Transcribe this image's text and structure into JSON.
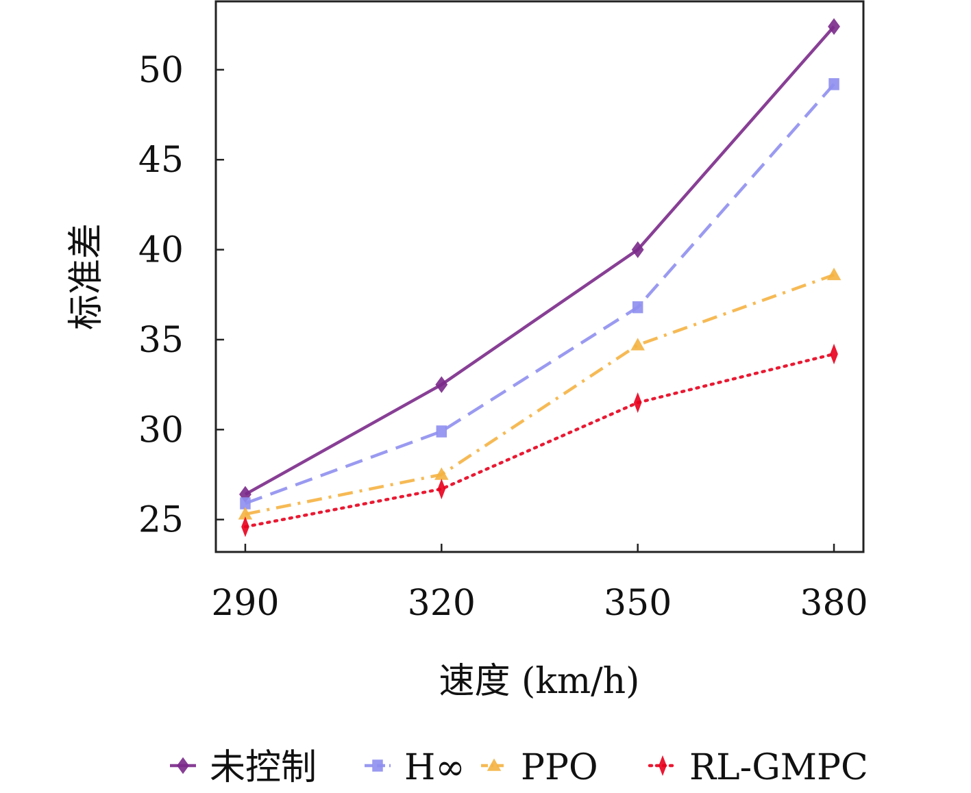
{
  "chart_data": {
    "type": "line",
    "title": "",
    "xlabel": "速度 (km/h)",
    "ylabel": "标准差",
    "x": [
      290,
      320,
      350,
      380
    ],
    "xlim": [
      285.5,
      384.5
    ],
    "ylim": [
      23.2,
      53.8
    ],
    "xticks": [
      290,
      320,
      350,
      380
    ],
    "yticks": [
      25,
      30,
      35,
      40,
      45,
      50
    ],
    "grid": false,
    "legend_position": "bottom",
    "series": [
      {
        "name": "未控制",
        "values": [
          26.4,
          32.5,
          40.0,
          52.4
        ],
        "color": "#7b2a8a",
        "dash": "solid",
        "marker": "diamond"
      },
      {
        "name": "H∞",
        "values": [
          25.9,
          29.9,
          36.8,
          49.2
        ],
        "color": "#8f8ff0",
        "dash": "dashed",
        "marker": "square"
      },
      {
        "name": "PPO",
        "values": [
          25.3,
          27.5,
          34.7,
          38.6
        ],
        "color": "#f5b342",
        "dash": "dashdot",
        "marker": "triangle"
      },
      {
        "name": "RL-GMPC",
        "values": [
          24.6,
          26.7,
          31.5,
          34.2
        ],
        "color": "#e8001c",
        "dash": "dotted",
        "marker": "thin-diamond"
      }
    ]
  }
}
